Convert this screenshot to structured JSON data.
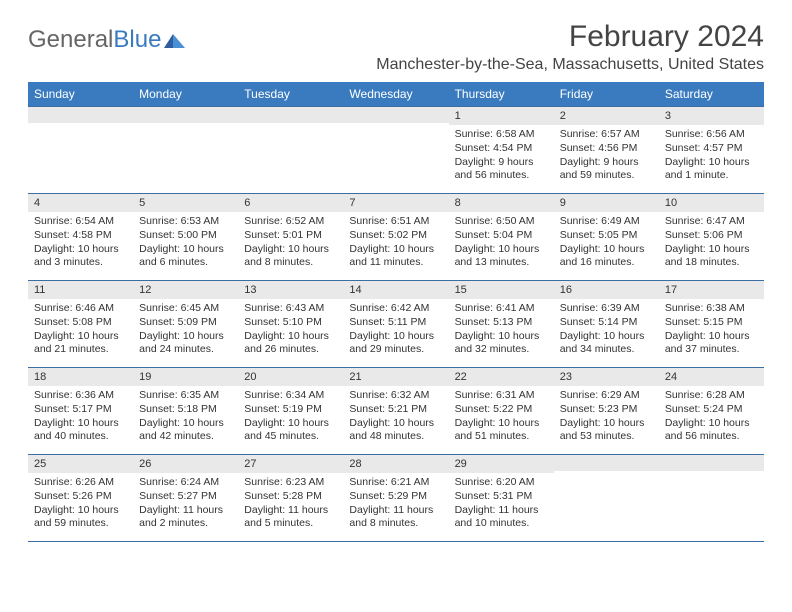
{
  "brand": {
    "part1": "General",
    "part2": "Blue"
  },
  "title": "February 2024",
  "location": "Manchester-by-the-Sea, Massachusetts, United States",
  "colors": {
    "header_bg": "#3a7bbf",
    "header_text": "#ffffff",
    "rule": "#3a6ea5",
    "daynum_bg": "#e9e9e9",
    "body_text": "#333333",
    "page_bg": "#ffffff"
  },
  "days_of_week": [
    "Sunday",
    "Monday",
    "Tuesday",
    "Wednesday",
    "Thursday",
    "Friday",
    "Saturday"
  ],
  "weeks": [
    [
      {
        "n": "",
        "sunrise": "",
        "sunset": "",
        "daylight": ""
      },
      {
        "n": "",
        "sunrise": "",
        "sunset": "",
        "daylight": ""
      },
      {
        "n": "",
        "sunrise": "",
        "sunset": "",
        "daylight": ""
      },
      {
        "n": "",
        "sunrise": "",
        "sunset": "",
        "daylight": ""
      },
      {
        "n": "1",
        "sunrise": "Sunrise: 6:58 AM",
        "sunset": "Sunset: 4:54 PM",
        "daylight": "Daylight: 9 hours and 56 minutes."
      },
      {
        "n": "2",
        "sunrise": "Sunrise: 6:57 AM",
        "sunset": "Sunset: 4:56 PM",
        "daylight": "Daylight: 9 hours and 59 minutes."
      },
      {
        "n": "3",
        "sunrise": "Sunrise: 6:56 AM",
        "sunset": "Sunset: 4:57 PM",
        "daylight": "Daylight: 10 hours and 1 minute."
      }
    ],
    [
      {
        "n": "4",
        "sunrise": "Sunrise: 6:54 AM",
        "sunset": "Sunset: 4:58 PM",
        "daylight": "Daylight: 10 hours and 3 minutes."
      },
      {
        "n": "5",
        "sunrise": "Sunrise: 6:53 AM",
        "sunset": "Sunset: 5:00 PM",
        "daylight": "Daylight: 10 hours and 6 minutes."
      },
      {
        "n": "6",
        "sunrise": "Sunrise: 6:52 AM",
        "sunset": "Sunset: 5:01 PM",
        "daylight": "Daylight: 10 hours and 8 minutes."
      },
      {
        "n": "7",
        "sunrise": "Sunrise: 6:51 AM",
        "sunset": "Sunset: 5:02 PM",
        "daylight": "Daylight: 10 hours and 11 minutes."
      },
      {
        "n": "8",
        "sunrise": "Sunrise: 6:50 AM",
        "sunset": "Sunset: 5:04 PM",
        "daylight": "Daylight: 10 hours and 13 minutes."
      },
      {
        "n": "9",
        "sunrise": "Sunrise: 6:49 AM",
        "sunset": "Sunset: 5:05 PM",
        "daylight": "Daylight: 10 hours and 16 minutes."
      },
      {
        "n": "10",
        "sunrise": "Sunrise: 6:47 AM",
        "sunset": "Sunset: 5:06 PM",
        "daylight": "Daylight: 10 hours and 18 minutes."
      }
    ],
    [
      {
        "n": "11",
        "sunrise": "Sunrise: 6:46 AM",
        "sunset": "Sunset: 5:08 PM",
        "daylight": "Daylight: 10 hours and 21 minutes."
      },
      {
        "n": "12",
        "sunrise": "Sunrise: 6:45 AM",
        "sunset": "Sunset: 5:09 PM",
        "daylight": "Daylight: 10 hours and 24 minutes."
      },
      {
        "n": "13",
        "sunrise": "Sunrise: 6:43 AM",
        "sunset": "Sunset: 5:10 PM",
        "daylight": "Daylight: 10 hours and 26 minutes."
      },
      {
        "n": "14",
        "sunrise": "Sunrise: 6:42 AM",
        "sunset": "Sunset: 5:11 PM",
        "daylight": "Daylight: 10 hours and 29 minutes."
      },
      {
        "n": "15",
        "sunrise": "Sunrise: 6:41 AM",
        "sunset": "Sunset: 5:13 PM",
        "daylight": "Daylight: 10 hours and 32 minutes."
      },
      {
        "n": "16",
        "sunrise": "Sunrise: 6:39 AM",
        "sunset": "Sunset: 5:14 PM",
        "daylight": "Daylight: 10 hours and 34 minutes."
      },
      {
        "n": "17",
        "sunrise": "Sunrise: 6:38 AM",
        "sunset": "Sunset: 5:15 PM",
        "daylight": "Daylight: 10 hours and 37 minutes."
      }
    ],
    [
      {
        "n": "18",
        "sunrise": "Sunrise: 6:36 AM",
        "sunset": "Sunset: 5:17 PM",
        "daylight": "Daylight: 10 hours and 40 minutes."
      },
      {
        "n": "19",
        "sunrise": "Sunrise: 6:35 AM",
        "sunset": "Sunset: 5:18 PM",
        "daylight": "Daylight: 10 hours and 42 minutes."
      },
      {
        "n": "20",
        "sunrise": "Sunrise: 6:34 AM",
        "sunset": "Sunset: 5:19 PM",
        "daylight": "Daylight: 10 hours and 45 minutes."
      },
      {
        "n": "21",
        "sunrise": "Sunrise: 6:32 AM",
        "sunset": "Sunset: 5:21 PM",
        "daylight": "Daylight: 10 hours and 48 minutes."
      },
      {
        "n": "22",
        "sunrise": "Sunrise: 6:31 AM",
        "sunset": "Sunset: 5:22 PM",
        "daylight": "Daylight: 10 hours and 51 minutes."
      },
      {
        "n": "23",
        "sunrise": "Sunrise: 6:29 AM",
        "sunset": "Sunset: 5:23 PM",
        "daylight": "Daylight: 10 hours and 53 minutes."
      },
      {
        "n": "24",
        "sunrise": "Sunrise: 6:28 AM",
        "sunset": "Sunset: 5:24 PM",
        "daylight": "Daylight: 10 hours and 56 minutes."
      }
    ],
    [
      {
        "n": "25",
        "sunrise": "Sunrise: 6:26 AM",
        "sunset": "Sunset: 5:26 PM",
        "daylight": "Daylight: 10 hours and 59 minutes."
      },
      {
        "n": "26",
        "sunrise": "Sunrise: 6:24 AM",
        "sunset": "Sunset: 5:27 PM",
        "daylight": "Daylight: 11 hours and 2 minutes."
      },
      {
        "n": "27",
        "sunrise": "Sunrise: 6:23 AM",
        "sunset": "Sunset: 5:28 PM",
        "daylight": "Daylight: 11 hours and 5 minutes."
      },
      {
        "n": "28",
        "sunrise": "Sunrise: 6:21 AM",
        "sunset": "Sunset: 5:29 PM",
        "daylight": "Daylight: 11 hours and 8 minutes."
      },
      {
        "n": "29",
        "sunrise": "Sunrise: 6:20 AM",
        "sunset": "Sunset: 5:31 PM",
        "daylight": "Daylight: 11 hours and 10 minutes."
      },
      {
        "n": "",
        "sunrise": "",
        "sunset": "",
        "daylight": ""
      },
      {
        "n": "",
        "sunrise": "",
        "sunset": "",
        "daylight": ""
      }
    ]
  ]
}
